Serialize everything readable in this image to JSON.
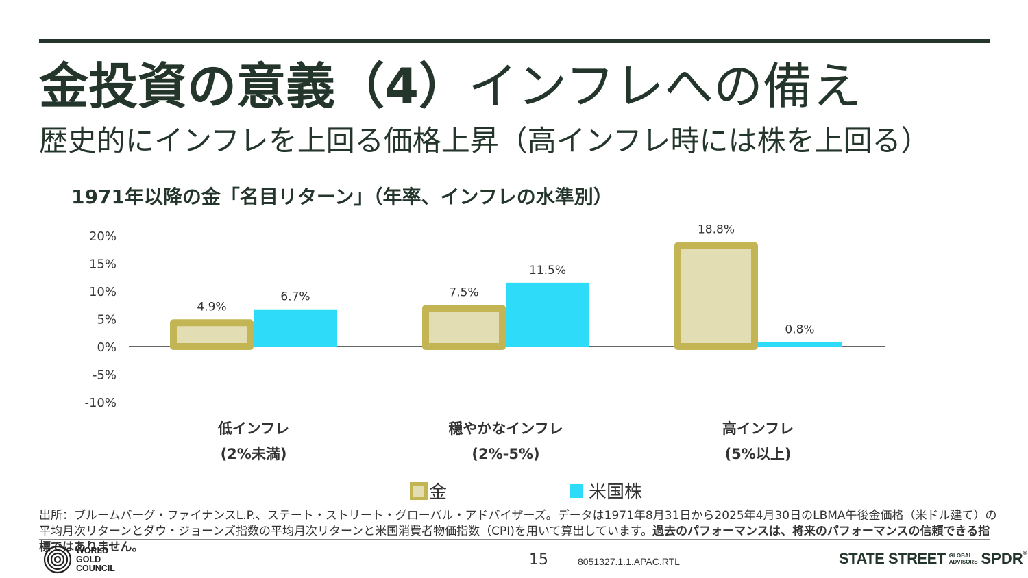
{
  "title": {
    "bold": "金投資の意義（4）",
    "light": "インフレへの備え"
  },
  "subtitle": "歴史的にインフレを上回る価格上昇（高インフレ時には株を上回る）",
  "chart_title": "1971年以降の金「名目リターン」（年率、インフレの水準別）",
  "chart_data": {
    "type": "bar",
    "categories": [
      {
        "line1": "低インフレ",
        "line2": "(2%未満)"
      },
      {
        "line1": "穏やかなインフレ",
        "line2": "(2%-5%)"
      },
      {
        "line1": "高インフレ",
        "line2": "(5%以上)"
      }
    ],
    "series": [
      {
        "name": "金",
        "values": [
          4.9,
          7.5,
          18.8
        ],
        "labels": [
          "4.9%",
          "7.5%",
          "18.8%"
        ],
        "fill": "#e3ddb4",
        "stroke": "#c3b553"
      },
      {
        "name": "米国株",
        "values": [
          6.7,
          11.5,
          0.8
        ],
        "labels": [
          "6.7%",
          "11.5%",
          "0.8%"
        ],
        "fill": "#2edcfa",
        "stroke": "#2edcfa"
      }
    ],
    "ylim": [
      -10,
      20
    ],
    "yticks": [
      20,
      15,
      10,
      5,
      0,
      -5,
      -10
    ],
    "ytick_labels": [
      "20%",
      "15%",
      "10%",
      "5%",
      "0%",
      "-5%",
      "-10%"
    ],
    "legend_position": "bottom",
    "grid": false
  },
  "legend": [
    {
      "label": "金",
      "icon": "gold-swatch-icon"
    },
    {
      "label": "米国株",
      "icon": "us-stocks-swatch-icon"
    }
  ],
  "source": {
    "normal": "出所：ブルームバーグ・ファイナンスL.P.、ステート・ストリート・グローバル・アドバイザーズ。データは1971年8月31日から2025年4月30日のLBMA午後金価格（米ドル建て）の平均月次リターンとダウ・ジョーンズ指数の平均月次リターンと米国消費者物価指数（CPI)を用いて算出しています。",
    "bold": "過去のパフォーマンスは、将来のパフォーマンスの信頼できる指標ではありません。"
  },
  "footer": {
    "wgc_lines": [
      "WORLD",
      "GOLD",
      "COUNCIL"
    ],
    "page_number": "15",
    "doc_code": "8051327.1.1.APAC.RTL",
    "ssga_main": "STATE STREET",
    "ssga_small": [
      "GLOBAL",
      "ADVISORS"
    ],
    "spdr": "SPDR",
    "reg_mark": "®"
  },
  "colors": {
    "dark_green": "#24362c",
    "gold_fill": "#e3ddb4",
    "gold_stroke": "#c3b553",
    "cyan": "#2edcfa"
  }
}
